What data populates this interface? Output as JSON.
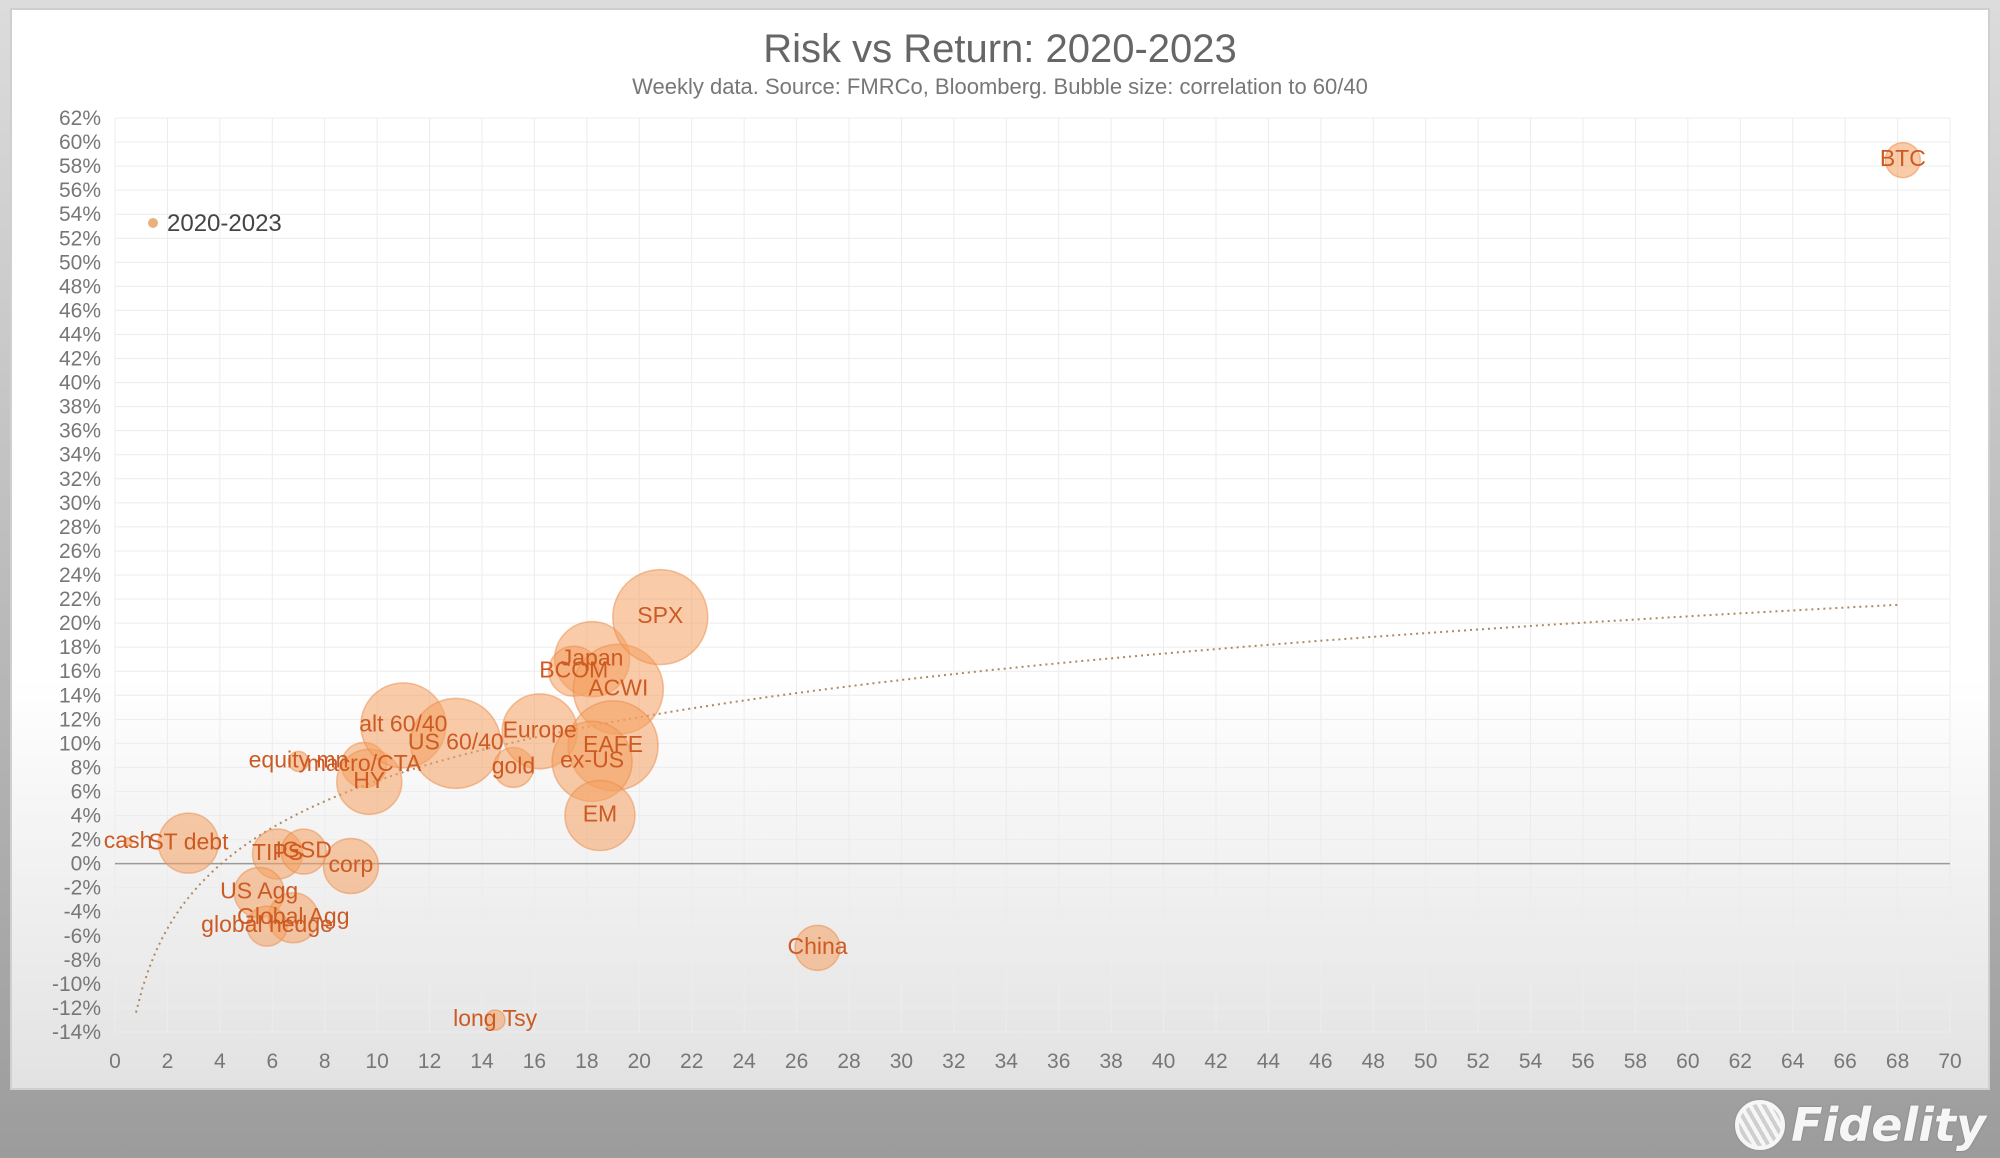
{
  "chart_data": {
    "type": "bubble",
    "title": "Risk vs Return: 2020-2023",
    "subtitle": "Weekly data.  Source: FMRCo, Bloomberg.  Bubble size: correlation to 60/40",
    "legend": {
      "label": "2020-2023",
      "placement": "top-left"
    },
    "xlim": [
      0,
      70
    ],
    "ylim": [
      -14,
      62
    ],
    "x_ticks": [
      0,
      2,
      4,
      6,
      8,
      10,
      12,
      14,
      16,
      18,
      20,
      22,
      24,
      26,
      28,
      30,
      32,
      34,
      36,
      38,
      40,
      42,
      44,
      46,
      48,
      50,
      52,
      54,
      56,
      58,
      60,
      62,
      64,
      66,
      68,
      70
    ],
    "y_ticks": [
      62,
      60,
      58,
      56,
      54,
      52,
      50,
      48,
      46,
      44,
      42,
      40,
      38,
      36,
      34,
      32,
      30,
      28,
      26,
      24,
      22,
      20,
      18,
      16,
      14,
      12,
      10,
      8,
      6,
      4,
      2,
      0,
      -2,
      -4,
      -6,
      -8,
      -10,
      -12,
      -14
    ],
    "y_tick_suffix": "%",
    "grid": true,
    "trendline": "logarithmic",
    "points": [
      {
        "label": "cash",
        "x": 0.5,
        "y": 1.8,
        "size": 0.1
      },
      {
        "label": "ST debt",
        "x": 2.8,
        "y": 1.7,
        "size": 0.6
      },
      {
        "label": "TIPS",
        "x": 6.2,
        "y": 0.8,
        "size": 0.5
      },
      {
        "label": "IGSD",
        "x": 7.2,
        "y": 1.0,
        "size": 0.45
      },
      {
        "label": "corp",
        "x": 9.0,
        "y": -0.2,
        "size": 0.55
      },
      {
        "label": "US Agg",
        "x": 5.5,
        "y": -2.4,
        "size": 0.5
      },
      {
        "label": "Global Agg",
        "x": 6.8,
        "y": -4.5,
        "size": 0.5
      },
      {
        "label": "global hedge",
        "x": 5.8,
        "y": -5.2,
        "size": 0.4
      },
      {
        "label": "equity mn",
        "x": 7.0,
        "y": 8.5,
        "size": 0.2
      },
      {
        "label": "macro/CTA",
        "x": 9.5,
        "y": 8.2,
        "size": 0.45
      },
      {
        "label": "HY",
        "x": 9.7,
        "y": 6.8,
        "size": 0.65
      },
      {
        "label": "alt 60/40",
        "x": 11.0,
        "y": 11.5,
        "size": 0.85
      },
      {
        "label": "US 60/40",
        "x": 13.0,
        "y": 10.0,
        "size": 0.9
      },
      {
        "label": "gold",
        "x": 15.2,
        "y": 8.0,
        "size": 0.4
      },
      {
        "label": "Europe",
        "x": 16.2,
        "y": 11.0,
        "size": 0.75
      },
      {
        "label": "Japan",
        "x": 18.2,
        "y": 17.0,
        "size": 0.75
      },
      {
        "label": "BCOM",
        "x": 17.5,
        "y": 16.0,
        "size": 0.5
      },
      {
        "label": "ACWI",
        "x": 19.2,
        "y": 14.5,
        "size": 0.9
      },
      {
        "label": "SPX",
        "x": 20.8,
        "y": 20.5,
        "size": 0.95
      },
      {
        "label": "EAFE",
        "x": 19.0,
        "y": 9.8,
        "size": 0.9
      },
      {
        "label": "ex-US",
        "x": 18.2,
        "y": 8.5,
        "size": 0.8
      },
      {
        "label": "EM",
        "x": 18.5,
        "y": 4.0,
        "size": 0.7
      },
      {
        "label": "China",
        "x": 26.8,
        "y": -7.0,
        "size": 0.45
      },
      {
        "label": "long Tsy",
        "x": 14.5,
        "y": -13.0,
        "size": 0.2
      },
      {
        "label": "BTC",
        "x": 68.2,
        "y": 58.5,
        "size": 0.35
      }
    ]
  },
  "brand": {
    "logo_text": "Fidelity",
    "bubble_color": "#f4a060",
    "label_color": "#cc5a22"
  }
}
